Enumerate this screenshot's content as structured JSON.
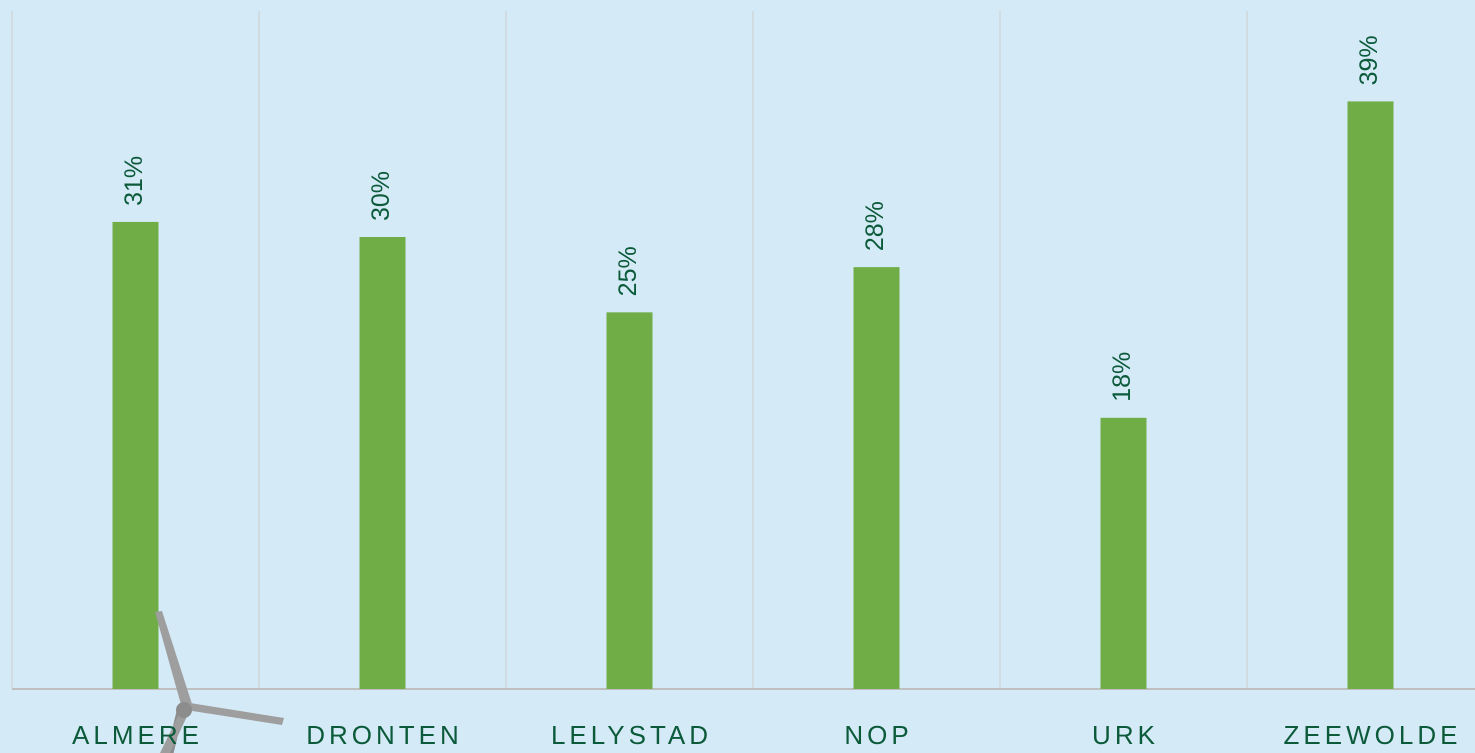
{
  "chart_data": {
    "type": "bar",
    "categories": [
      "ALMERE",
      "DRONTEN",
      "LELYSTAD",
      "NOP",
      "URK",
      "ZEEWOLDE"
    ],
    "values": [
      31,
      30,
      25,
      28,
      18,
      39
    ],
    "value_labels": [
      "31%",
      "30%",
      "25%",
      "28%",
      "18%",
      "39%"
    ],
    "color": "#70ad47",
    "ylim": [
      0,
      45
    ]
  }
}
